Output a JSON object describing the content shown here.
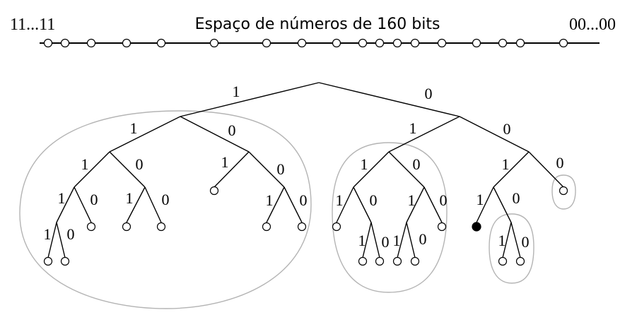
{
  "header": {
    "title": "Espaço de números de 160 bits",
    "left_label": "11...11",
    "right_label": "00...00"
  },
  "tree": {
    "bit_one": "1",
    "bit_zero": "0"
  },
  "colors": {
    "stroke": "#000000",
    "group_outline": "#b4b4b4",
    "node_fill": "#ffffff",
    "highlight_node": "#000000"
  }
}
